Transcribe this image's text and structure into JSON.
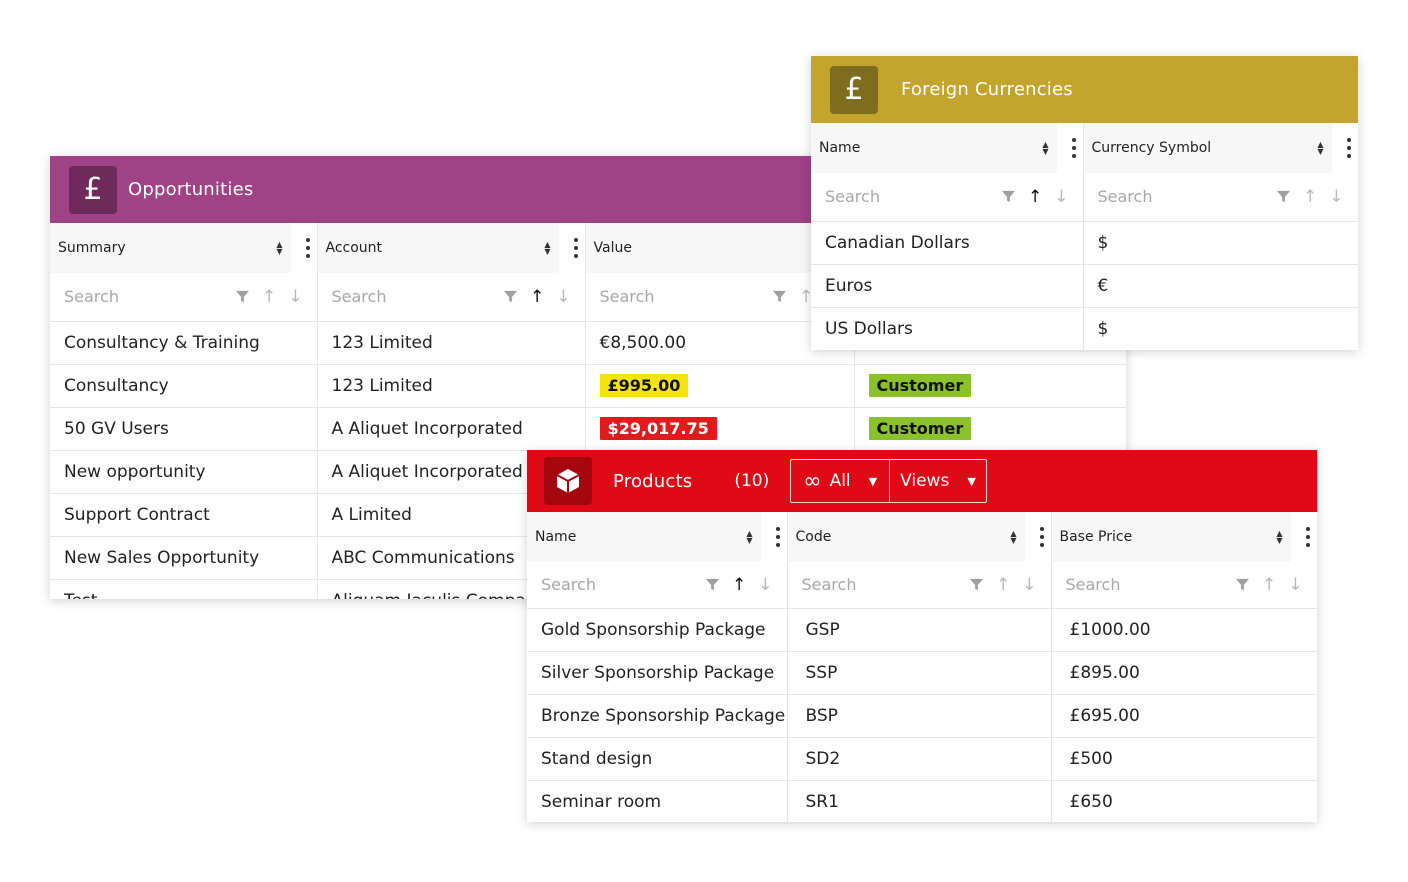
{
  "opportunities": {
    "icon": "pound-icon",
    "title": "Opportunities",
    "color": "#a04286",
    "columns": [
      "Summary",
      "Account",
      "Value",
      ""
    ],
    "search_placeholder": "Search",
    "rows": [
      {
        "summary": "Consultancy & Training",
        "account": "123 Limited",
        "value": "€8,500.00",
        "value_style": "plain",
        "status": ""
      },
      {
        "summary": "Consultancy",
        "account": "123 Limited",
        "value": "£995.00",
        "value_style": "yellow",
        "status": "Customer"
      },
      {
        "summary": "50 GV Users",
        "account": "A Aliquet Incorporated",
        "value": "$29,017.75",
        "value_style": "red",
        "status": "Customer"
      },
      {
        "summary": "New opportunity",
        "account": "A Aliquet Incorporated",
        "value": "",
        "value_style": "plain",
        "status": ""
      },
      {
        "summary": "Support Contract",
        "account": "A Limited",
        "value": "",
        "value_style": "plain",
        "status": ""
      },
      {
        "summary": "New Sales Opportunity",
        "account": "ABC Communications",
        "value": "",
        "value_style": "plain",
        "status": ""
      },
      {
        "summary": "Test",
        "account": "Aliquam Iaculis Company",
        "value": "",
        "value_style": "plain",
        "status": ""
      }
    ]
  },
  "currencies": {
    "icon": "pound-icon",
    "title": "Foreign Currencies",
    "color": "#c3a42c",
    "icon_bg": "#7e6c1f",
    "columns": [
      "Name",
      "Currency Symbol"
    ],
    "search_placeholder": "Search",
    "rows": [
      {
        "name": "Canadian Dollars",
        "symbol": "$"
      },
      {
        "name": "Euros",
        "symbol": "€"
      },
      {
        "name": "US Dollars",
        "symbol": "$"
      }
    ]
  },
  "products": {
    "icon": "box-icon",
    "title": "Products",
    "count": "(10)",
    "color": "#e00a16",
    "filter_label": "All",
    "views_label": "Views",
    "columns": [
      "Name",
      "Code",
      "Base Price"
    ],
    "search_placeholder": "Search",
    "rows": [
      {
        "name": "Gold Sponsorship Package",
        "code": "GSP",
        "price": "£1000.00"
      },
      {
        "name": "Silver Sponsorship Package",
        "code": "SSP",
        "price": "£895.00"
      },
      {
        "name": "Bronze Sponsorship Package",
        "code": "BSP",
        "price": "£695.00"
      },
      {
        "name": "Stand design",
        "code": "SD2",
        "price": "£500"
      },
      {
        "name": "Seminar room",
        "code": "SR1",
        "price": "£650"
      }
    ]
  }
}
